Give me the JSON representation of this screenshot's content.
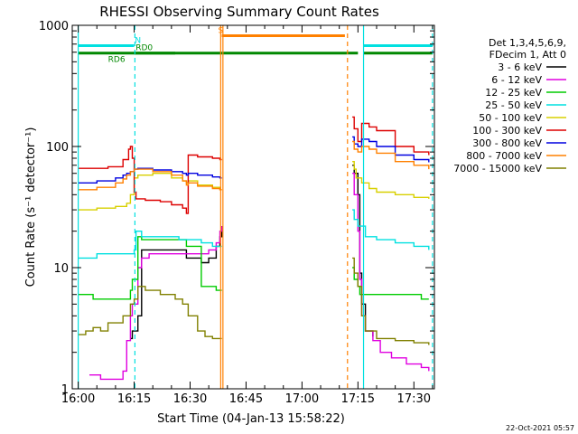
{
  "chart_data": {
    "type": "line",
    "title": "RHESSI Observing Summary Count Rates",
    "xlabel": "Start Time (04-Jan-13 15:58:22)",
    "ylabel": "Count Rate (s⁻¹ detector⁻¹)",
    "x_unit": "minutes after 16:00 UT",
    "xlim": [
      -1.6,
      95.5
    ],
    "ylim": [
      1,
      1000
    ],
    "yscale": "log",
    "x_ticks": [
      {
        "t": 0,
        "label": "16:00"
      },
      {
        "t": 15,
        "label": "16:15"
      },
      {
        "t": 30,
        "label": "16:30"
      },
      {
        "t": 45,
        "label": "16:45"
      },
      {
        "t": 60,
        "label": "17:00"
      },
      {
        "t": 75,
        "label": "17:15"
      },
      {
        "t": 90,
        "label": "17:30"
      }
    ],
    "y_ticks": [
      {
        "v": 1,
        "label": "1"
      },
      {
        "v": 10,
        "label": "10"
      },
      {
        "v": 100,
        "label": "100"
      },
      {
        "v": 1000,
        "label": "1000"
      }
    ],
    "legend_position": "right",
    "legend_header": [
      "Det 1,3,4,5,6,9,",
      "FDecim 1, Att 0"
    ],
    "series": [
      {
        "name": "3 - 6 keV",
        "color": "#000000",
        "x": [
          0,
          13,
          14,
          14.5,
          16,
          17,
          29,
          33,
          35,
          37,
          38,
          38.5,
          40,
          73,
          73.5,
          74,
          75,
          75.5,
          76,
          77,
          79,
          84
        ],
        "y": [
          null,
          null,
          2.6,
          3.0,
          4.0,
          14,
          12,
          11,
          12,
          15,
          18,
          22,
          null,
          null,
          70,
          60,
          40,
          9,
          5,
          3,
          2.7,
          null
        ]
      },
      {
        "name": "6 - 12 keV",
        "color": "#e000e0",
        "x": [
          0,
          3,
          6,
          12,
          13,
          14,
          14.5,
          16,
          17,
          19,
          24,
          29,
          33,
          35,
          37,
          38,
          38.5,
          40,
          73,
          73.5,
          74,
          75,
          75.5,
          76,
          77,
          79,
          81,
          84,
          88,
          92,
          94
        ],
        "y": [
          null,
          1.3,
          1.2,
          1.4,
          2.5,
          4.0,
          5,
          10,
          12,
          13,
          13,
          13,
          13,
          14,
          16,
          20,
          22,
          null,
          null,
          60,
          40,
          20,
          8,
          4,
          3,
          2.5,
          2,
          1.8,
          1.6,
          1.5,
          1.4
        ]
      },
      {
        "name": "12 - 25 keV",
        "color": "#00cc00",
        "x": [
          0,
          4,
          8,
          12,
          14,
          14.5,
          16,
          17,
          29,
          33,
          37,
          38,
          38.5,
          40,
          73,
          73.5,
          74,
          75,
          75.5,
          76,
          78,
          81,
          84,
          88,
          92,
          94
        ],
        "y": [
          6,
          5.5,
          5.5,
          5.5,
          6.5,
          8,
          18,
          17,
          15,
          7,
          6.5,
          6.5,
          6.5,
          null,
          null,
          10,
          8,
          7,
          6,
          6,
          6,
          6,
          6,
          6,
          5.5,
          5.5
        ]
      },
      {
        "name": "25 - 50 keV",
        "color": "#00e0e0",
        "x": [
          0,
          5,
          10,
          13,
          15,
          15.5,
          17,
          22,
          27,
          29.5,
          33,
          36,
          38,
          38.5,
          40,
          73,
          73.5,
          74,
          75,
          77,
          80,
          85,
          90,
          94
        ],
        "y": [
          12,
          13,
          13,
          13,
          14,
          20,
          18,
          18,
          17,
          17,
          16,
          15,
          15,
          15,
          null,
          null,
          30,
          25,
          22,
          18,
          17,
          16,
          15,
          14
        ]
      },
      {
        "name": "50 - 100 keV",
        "color": "#d8d000",
        "x": [
          0,
          5,
          10,
          13,
          14,
          15,
          16,
          20,
          25,
          28,
          29,
          29.5,
          32,
          36,
          38,
          38.5,
          40,
          73,
          73.5,
          74,
          74.5,
          76,
          78,
          80,
          85,
          90,
          94
        ],
        "y": [
          30,
          31,
          32,
          34,
          40,
          55,
          58,
          60,
          55,
          52,
          50,
          52,
          48,
          46,
          44,
          44,
          null,
          null,
          75,
          65,
          55,
          50,
          45,
          42,
          40,
          38,
          37
        ]
      },
      {
        "name": "100 - 300 keV",
        "color": "#dd0000",
        "x": [
          0,
          3,
          8,
          12,
          13.5,
          14,
          14.5,
          15,
          15.5,
          18,
          22,
          25,
          28,
          29,
          29.5,
          32,
          36,
          38,
          38.5,
          40,
          73,
          73.5,
          74,
          75,
          76,
          78,
          80,
          85,
          90,
          94
        ],
        "y": [
          66,
          66,
          68,
          78,
          95,
          100,
          80,
          42,
          37,
          36,
          35,
          33,
          31,
          28,
          85,
          82,
          80,
          78,
          78,
          null,
          null,
          175,
          140,
          110,
          155,
          145,
          135,
          100,
          90,
          85
        ]
      },
      {
        "name": "300 - 800 keV",
        "color": "#0000e0",
        "x": [
          0,
          5,
          10,
          12,
          13,
          14,
          15,
          16,
          20,
          25,
          28,
          29,
          29.5,
          32,
          36,
          38,
          38.5,
          40,
          73,
          73.5,
          74,
          75,
          76,
          78,
          80,
          85,
          90,
          94
        ],
        "y": [
          50,
          52,
          55,
          58,
          60,
          62,
          65,
          66,
          64,
          62,
          60,
          58,
          60,
          58,
          56,
          55,
          55,
          null,
          null,
          120,
          105,
          100,
          115,
          110,
          100,
          85,
          78,
          74
        ]
      },
      {
        "name": "800 - 7000 keV",
        "color": "#ff8000",
        "x": [
          0,
          5,
          10,
          12,
          13,
          14,
          15,
          16,
          20,
          25,
          28,
          29,
          29.5,
          32,
          36,
          38,
          38.5,
          40,
          73,
          73.5,
          74,
          75,
          76,
          78,
          80,
          85,
          90,
          94
        ],
        "y": [
          44,
          46,
          50,
          54,
          58,
          62,
          65,
          65,
          62,
          58,
          52,
          48,
          50,
          47,
          45,
          44,
          44,
          null,
          null,
          110,
          95,
          90,
          100,
          95,
          88,
          75,
          70,
          65
        ]
      },
      {
        "name": "7000 - 15000 keV",
        "color": "#808000",
        "x": [
          0,
          2,
          4,
          6,
          8,
          12,
          14,
          15,
          16,
          18,
          22,
          26,
          28,
          29.5,
          32,
          34,
          36,
          38,
          38.5,
          40,
          73,
          73.5,
          74,
          75,
          76,
          77,
          80,
          85,
          90,
          94
        ],
        "y": [
          2.8,
          3.0,
          3.2,
          3.0,
          3.5,
          4.0,
          5.0,
          5.5,
          7.0,
          6.5,
          6.0,
          5.5,
          5.0,
          4.0,
          3.0,
          2.7,
          2.6,
          2.6,
          2.6,
          null,
          null,
          12,
          9,
          7,
          4,
          3,
          2.6,
          2.5,
          2.4,
          2.3
        ]
      }
    ],
    "flags": [
      {
        "label": "N",
        "color": "#00e0e0",
        "y": 680,
        "segments": [
          [
            0,
            15
          ]
        ],
        "label_at": 15.2
      },
      {
        "label": "",
        "color": "#00e0e0",
        "y": 680,
        "segments": [
          [
            76.5,
            95
          ]
        ]
      },
      {
        "label": "RD6",
        "color": "#008800",
        "y": 590,
        "segments": [
          [
            0,
            26
          ]
        ],
        "label_at": 8,
        "label_below": true
      },
      {
        "label": "RD0",
        "color": "#008800",
        "y": 590,
        "segments": [
          [
            15,
            26
          ],
          [
            26,
            72
          ],
          [
            72,
            75
          ],
          [
            76.5,
            95
          ]
        ],
        "label_at": 15.4
      },
      {
        "label": "S",
        "color": "#ff8000",
        "y": 820,
        "segments": [
          [
            38.5,
            71.5
          ]
        ],
        "label_at": 37.5
      }
    ],
    "vlines_solid": [
      {
        "t": 0,
        "color": "#00e0e0"
      },
      {
        "t": 76.5,
        "color": "#00e0e0"
      },
      {
        "t": 38.2,
        "color": "#ff8000"
      },
      {
        "t": 38.8,
        "color": "#ff8000"
      }
    ],
    "vlines_dashed": [
      {
        "t": 15.2,
        "color": "#00e0e0"
      },
      {
        "t": 95,
        "color": "#00e0e0"
      },
      {
        "t": 72.2,
        "color": "#ff8000"
      }
    ]
  },
  "footer": {
    "timestamp": "22-Oct-2021 05:57"
  }
}
